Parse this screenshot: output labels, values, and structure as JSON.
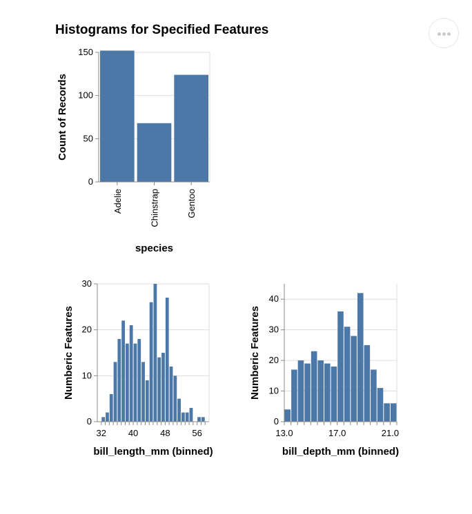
{
  "title": "Histograms for Specified Features",
  "menu": {
    "icon": "ellipsis-icon"
  },
  "colors": {
    "bar": "#4c78a8",
    "grid": "#dddddd",
    "axis": "#888888"
  },
  "chart_data": [
    {
      "type": "bar",
      "title": "Histograms for Specified Features",
      "xlabel": "species",
      "ylabel": "Count of Records",
      "categories": [
        "Adelie",
        "Chinstrap",
        "Gentoo"
      ],
      "values": [
        152,
        68,
        124
      ],
      "ylim": [
        0,
        150
      ],
      "yticks": [
        0,
        50,
        100,
        150
      ],
      "grid": true
    },
    {
      "type": "bar",
      "xlabel": "bill_length_mm (binned)",
      "ylabel": "Numberic Features",
      "bin_step": 1,
      "bin_start": 32,
      "values": [
        1,
        2,
        6,
        13,
        18,
        22,
        17,
        21,
        17,
        18,
        13,
        9,
        26,
        30,
        14,
        15,
        27,
        12,
        10,
        5,
        2,
        2,
        3,
        0,
        1,
        1
      ],
      "ylim": [
        0,
        30
      ],
      "yticks": [
        0,
        10,
        20,
        30
      ],
      "xlim": [
        31,
        59
      ],
      "xticks": [
        32,
        40,
        48,
        56
      ],
      "grid": true
    },
    {
      "type": "bar",
      "xlabel": "bill_depth_mm (binned)",
      "ylabel": "Numberic Features",
      "bin_step": 0.5,
      "bin_start": 13.0,
      "values": [
        4,
        17,
        20,
        19,
        23,
        20,
        19,
        18,
        36,
        31,
        28,
        42,
        25,
        17,
        11,
        6,
        6
      ],
      "ylim": [
        0,
        45
      ],
      "yticks": [
        0,
        10,
        20,
        30,
        40
      ],
      "xlim": [
        13.0,
        21.5
      ],
      "xticks": [
        "13.0",
        "17.0",
        "21.0"
      ],
      "grid": true
    }
  ]
}
